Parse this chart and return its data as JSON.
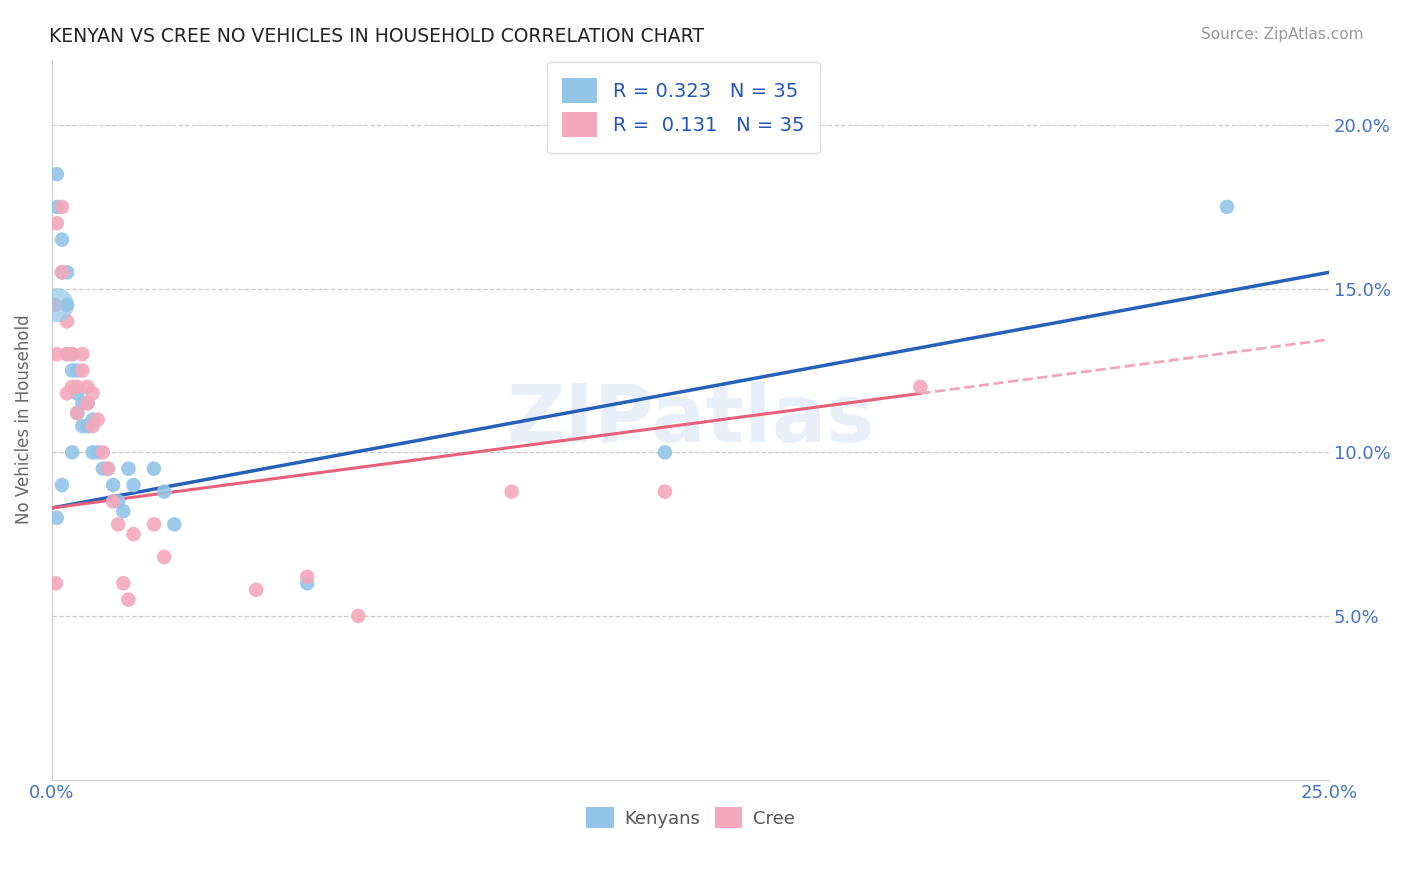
{
  "title": "KENYAN VS CREE NO VEHICLES IN HOUSEHOLD CORRELATION CHART",
  "source": "Source: ZipAtlas.com",
  "ylabel": "No Vehicles in Household",
  "xlim": [
    0.0,
    0.25
  ],
  "ylim": [
    0.0,
    0.22
  ],
  "ytick_labels": [
    "5.0%",
    "10.0%",
    "15.0%",
    "20.0%"
  ],
  "yticks": [
    0.05,
    0.1,
    0.15,
    0.2
  ],
  "kenyan_color": "#92C5E8",
  "cree_color": "#F4A8BB",
  "kenyan_line_color": "#2660B8",
  "cree_line_color": "#E8607A",
  "kenyan_R": 0.323,
  "cree_R": 0.131,
  "kenyan_N": 35,
  "cree_N": 35,
  "legend_text_color": "#2255BB",
  "watermark": "ZIPatlas",
  "background_color": "#FFFFFF",
  "kenyan_x": [
    0.001,
    0.001,
    0.002,
    0.002,
    0.003,
    0.003,
    0.003,
    0.004,
    0.004,
    0.005,
    0.005,
    0.005,
    0.006,
    0.006,
    0.007,
    0.007,
    0.008,
    0.008,
    0.009,
    0.01,
    0.011,
    0.012,
    0.013,
    0.014,
    0.015,
    0.016,
    0.02,
    0.022,
    0.024,
    0.05,
    0.12,
    0.23,
    0.001,
    0.002,
    0.004
  ],
  "kenyan_y": [
    0.175,
    0.185,
    0.165,
    0.155,
    0.155,
    0.145,
    0.13,
    0.13,
    0.125,
    0.125,
    0.118,
    0.112,
    0.115,
    0.108,
    0.115,
    0.108,
    0.11,
    0.1,
    0.1,
    0.095,
    0.095,
    0.09,
    0.085,
    0.082,
    0.095,
    0.09,
    0.095,
    0.088,
    0.078,
    0.06,
    0.1,
    0.175,
    0.08,
    0.09,
    0.1
  ],
  "kenyan_large": [
    0.001
  ],
  "kenyan_large_y": [
    0.145
  ],
  "cree_x": [
    0.0005,
    0.001,
    0.001,
    0.002,
    0.002,
    0.003,
    0.003,
    0.003,
    0.004,
    0.004,
    0.005,
    0.005,
    0.006,
    0.006,
    0.007,
    0.007,
    0.008,
    0.008,
    0.009,
    0.01,
    0.011,
    0.012,
    0.013,
    0.014,
    0.015,
    0.016,
    0.02,
    0.022,
    0.04,
    0.05,
    0.06,
    0.09,
    0.12,
    0.17,
    0.0008
  ],
  "cree_y": [
    0.145,
    0.17,
    0.13,
    0.175,
    0.155,
    0.14,
    0.13,
    0.118,
    0.13,
    0.12,
    0.12,
    0.112,
    0.13,
    0.125,
    0.12,
    0.115,
    0.118,
    0.108,
    0.11,
    0.1,
    0.095,
    0.085,
    0.078,
    0.06,
    0.055,
    0.075,
    0.078,
    0.068,
    0.058,
    0.062,
    0.05,
    0.088,
    0.088,
    0.12,
    0.06
  ],
  "cree_large": [
    0.0
  ],
  "cree_large_y": [
    0.145
  ],
  "kenyan_trend_x0": 0.0,
  "kenyan_trend_y0": 0.083,
  "kenyan_trend_x1": 0.25,
  "kenyan_trend_y1": 0.155,
  "cree_trend_x0": 0.0,
  "cree_trend_y0": 0.083,
  "cree_trend_x1": 0.17,
  "cree_trend_y1": 0.118
}
